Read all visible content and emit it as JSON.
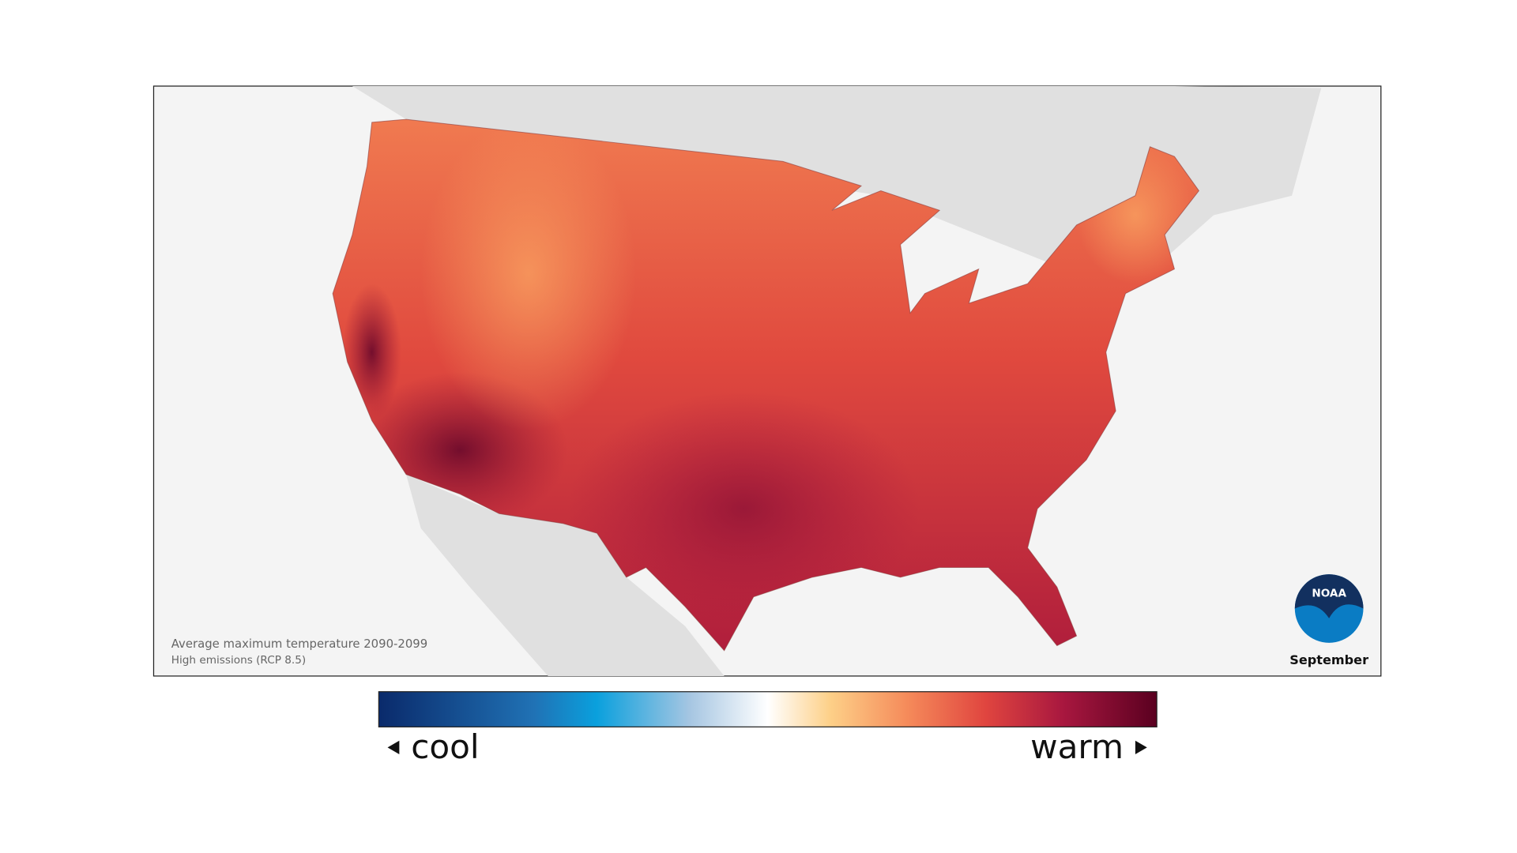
{
  "map": {
    "caption": {
      "line1": "Average maximum temperature 2090-2099",
      "line2": "High emissions (RCP 8.5)"
    },
    "logo": "NOAA",
    "month": "September"
  },
  "legend": {
    "low_label": "cool",
    "high_label": "warm"
  }
}
